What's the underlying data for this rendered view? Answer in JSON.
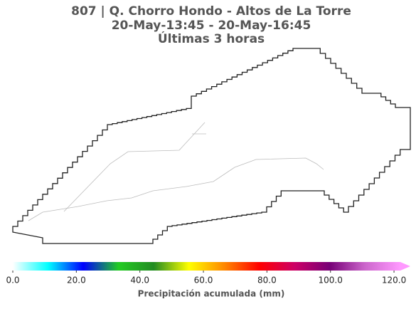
{
  "chart_data": {
    "type": "map",
    "title": [
      "807 | Q. Chorro Hondo - Altos de La Torre",
      "20-May-13:45 - 20-May-16:45",
      "Últimas 3 horas"
    ],
    "colorbar": {
      "label": "Precipitación acumulada (mm)",
      "lim": [
        0,
        122
      ],
      "ticks": [
        {
          "value": 0,
          "label": "0.0"
        },
        {
          "value": 20,
          "label": "20.0"
        },
        {
          "value": 40,
          "label": "40.0"
        },
        {
          "value": 60,
          "label": "60.0"
        },
        {
          "value": 80,
          "label": "80.0"
        },
        {
          "value": 100,
          "label": "100.0"
        },
        {
          "value": 120,
          "label": "120.0"
        }
      ],
      "colors": [
        "#ffffff",
        "#00ffff",
        "#0000ff",
        "#22cc22",
        "#228b22",
        "#ffff00",
        "#ff8800",
        "#ff0000",
        "#cc0066",
        "#770077",
        "#cc66cc",
        "#ff99ff"
      ]
    }
  }
}
